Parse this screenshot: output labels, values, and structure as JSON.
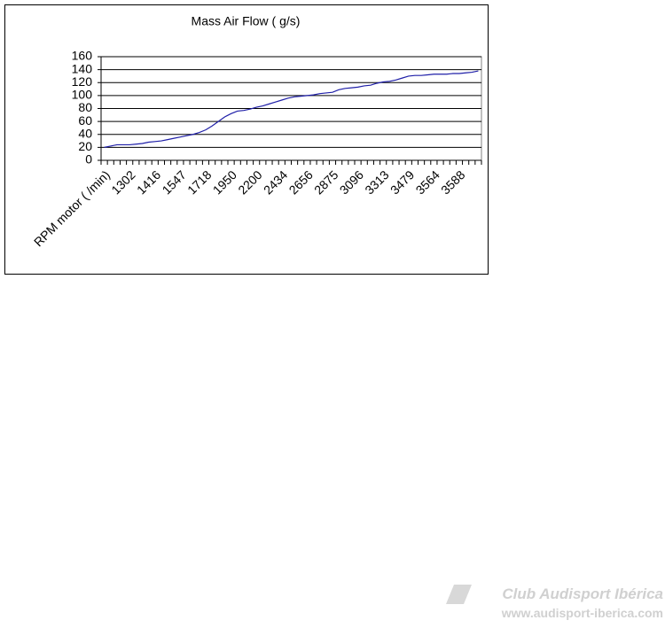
{
  "chart_data": {
    "type": "line",
    "title": "Mass Air Flow ( g/s)",
    "categories": [
      "RPM motor ( /min)",
      null,
      null,
      null,
      "1302",
      null,
      null,
      null,
      "1416",
      null,
      null,
      null,
      "1547",
      null,
      null,
      null,
      "1718",
      null,
      null,
      null,
      "1950",
      null,
      null,
      null,
      "2200",
      null,
      null,
      null,
      "2434",
      null,
      null,
      null,
      "2656",
      null,
      null,
      null,
      "2875",
      null,
      null,
      null,
      "3096",
      null,
      null,
      null,
      "3313",
      null,
      null,
      null,
      "3479",
      null,
      null,
      null,
      "3564",
      null,
      null,
      null,
      "3588",
      null,
      null,
      null
    ],
    "values": [
      20,
      22,
      24,
      24,
      24,
      25,
      26,
      28,
      29,
      30,
      32,
      34,
      36,
      38,
      40,
      43,
      47,
      53,
      60,
      67,
      72,
      76,
      77,
      79,
      82,
      84,
      87,
      90,
      93,
      96,
      98,
      99,
      100,
      101,
      103,
      104,
      105,
      109,
      111,
      112,
      113,
      115,
      116,
      119,
      121,
      122,
      124,
      127,
      130,
      131,
      131,
      132,
      133,
      133,
      133,
      134,
      134,
      135,
      136,
      138
    ],
    "color": "#1f1fa8",
    "ylim": [
      0,
      160
    ],
    "yticks": [
      0,
      20,
      40,
      60,
      80,
      100,
      120,
      140,
      160
    ],
    "grid": true
  },
  "watermark": {
    "name": "Club Audisport Ibérica",
    "url": "www.audisport-iberica.com"
  }
}
